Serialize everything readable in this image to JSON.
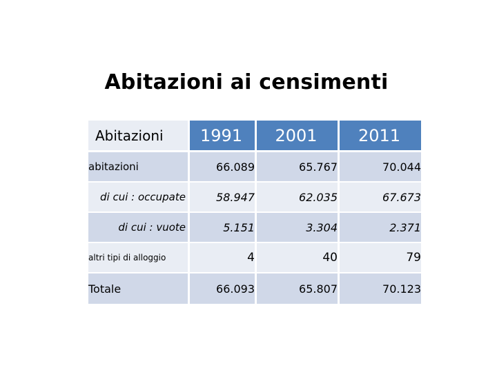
{
  "title": "Abitazioni ai censimenti",
  "table": {
    "header_label": "Abitazioni",
    "years": [
      "1991",
      "2001",
      "2011"
    ],
    "rows": [
      {
        "label": "abitazioni",
        "values": [
          "66.089",
          "65.767",
          "70.044"
        ]
      },
      {
        "label": "di cui : occupate",
        "values": [
          "58.947",
          "62.035",
          "67.673"
        ]
      },
      {
        "label": "di cui : vuote",
        "values": [
          "5.151",
          "3.304",
          "2.371"
        ]
      },
      {
        "label": "altri tipi di alloggio",
        "values": [
          "4",
          "40",
          "79"
        ]
      },
      {
        "label": "Totale",
        "values": [
          "66.093",
          "65.807",
          "70.123"
        ]
      }
    ]
  },
  "colors": {
    "header": "#4f81bd",
    "row_band_a": "#d0d8e8",
    "row_band_b": "#e9edf4"
  }
}
